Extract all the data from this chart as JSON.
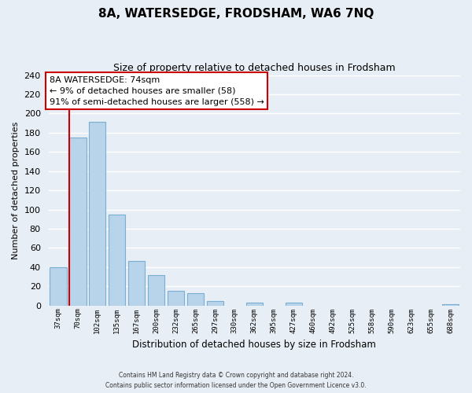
{
  "title": "8A, WATERSEDGE, FRODSHAM, WA6 7NQ",
  "subtitle": "Size of property relative to detached houses in Frodsham",
  "xlabel": "Distribution of detached houses by size in Frodsham",
  "ylabel": "Number of detached properties",
  "categories": [
    "37sqm",
    "70sqm",
    "102sqm",
    "135sqm",
    "167sqm",
    "200sqm",
    "232sqm",
    "265sqm",
    "297sqm",
    "330sqm",
    "362sqm",
    "395sqm",
    "427sqm",
    "460sqm",
    "492sqm",
    "525sqm",
    "558sqm",
    "590sqm",
    "623sqm",
    "655sqm",
    "688sqm"
  ],
  "values": [
    40,
    175,
    191,
    95,
    46,
    32,
    15,
    13,
    5,
    0,
    3,
    0,
    3,
    0,
    0,
    0,
    0,
    0,
    0,
    0,
    1
  ],
  "bar_color": "#b8d4eb",
  "bar_edge_color": "#7aafd4",
  "marker_line_color": "#cc0000",
  "annotation_title": "8A WATERSEDGE: 74sqm",
  "annotation_line1": "← 9% of detached houses are smaller (58)",
  "annotation_line2": "91% of semi-detached houses are larger (558) →",
  "annotation_box_facecolor": "#ffffff",
  "annotation_box_edgecolor": "#cc0000",
  "ylim": [
    0,
    240
  ],
  "yticks": [
    0,
    20,
    40,
    60,
    80,
    100,
    120,
    140,
    160,
    180,
    200,
    220,
    240
  ],
  "footer_line1": "Contains HM Land Registry data © Crown copyright and database right 2024.",
  "footer_line2": "Contains public sector information licensed under the Open Government Licence v3.0.",
  "bg_color": "#e8eef5",
  "plot_bg_color": "#e8eef5",
  "title_fontsize": 11,
  "subtitle_fontsize": 9
}
